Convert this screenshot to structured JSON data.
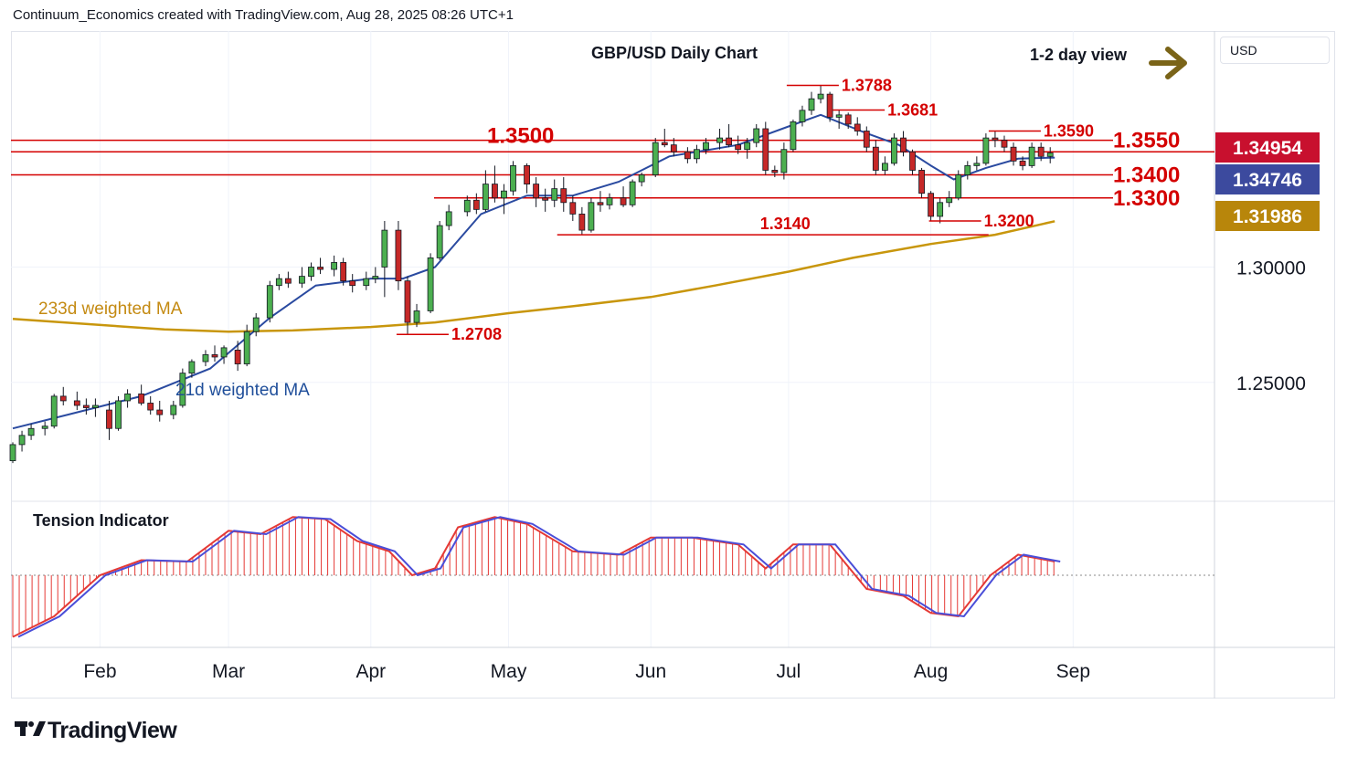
{
  "header_text": "Continuum_Economics created with TradingView.com, Aug 28, 2025 08:26 UTC+1",
  "currency": "USD",
  "logo_text": "TradingView",
  "chart_data": {
    "type": "candlestick",
    "title": "GBP/USD Daily Chart",
    "view_label": "1-2 day view",
    "view_direction": "sideways",
    "x_ticks": [
      {
        "label": "Feb",
        "date": "2025-02-01"
      },
      {
        "label": "Mar",
        "date": "2025-03-01"
      },
      {
        "label": "Apr",
        "date": "2025-04-01"
      },
      {
        "label": "May",
        "date": "2025-05-01"
      },
      {
        "label": "Jun",
        "date": "2025-06-01"
      },
      {
        "label": "Jul",
        "date": "2025-07-01"
      },
      {
        "label": "Aug",
        "date": "2025-08-01"
      },
      {
        "label": "Sep",
        "date": "2025-09-01"
      }
    ],
    "xlim": [
      "2025-01-13",
      "2025-09-30"
    ],
    "ylim": [
      1.2,
      1.4
    ],
    "y_tick_labels": [
      "1.25000",
      "1.30000"
    ],
    "y_ticks": [
      1.25,
      1.3
    ],
    "price_badges": [
      {
        "value": "1.34954",
        "color": "#c8102e"
      },
      {
        "value": "1.34746",
        "color": "#3c4a9e"
      },
      {
        "value": "1.31986",
        "color": "#b8860b"
      }
    ],
    "support_resistance": [
      {
        "label": "1.3550",
        "value": 1.355
      },
      {
        "label": "1.3400",
        "value": 1.34
      },
      {
        "label": "1.3300",
        "value": 1.33
      }
    ],
    "level_1_3500": {
      "label": "1.3500",
      "value": 1.35
    },
    "annotations": [
      {
        "label": "1.3788",
        "value": 1.3788,
        "date": "2025-07-01"
      },
      {
        "label": "1.3681",
        "value": 1.3681,
        "date": "2025-07-11"
      },
      {
        "label": "1.3590",
        "value": 1.359,
        "date": "2025-08-14"
      },
      {
        "label": "1.3200",
        "value": 1.32,
        "date": "2025-08-01"
      },
      {
        "label": "1.3140",
        "value": 1.314,
        "date": "2025-05-12"
      },
      {
        "label": "1.2708",
        "value": 1.2708,
        "date": "2025-04-07"
      }
    ],
    "ma_labels": {
      "ma233": "233d weighted MA",
      "ma21": "21d weighted MA"
    },
    "ma233_points": [
      [
        "2025-01-13",
        1.2775
      ],
      [
        "2025-02-15",
        1.273
      ],
      [
        "2025-03-01",
        1.272
      ],
      [
        "2025-03-15",
        1.2725
      ],
      [
        "2025-04-01",
        1.274
      ],
      [
        "2025-04-15",
        1.276
      ],
      [
        "2025-05-01",
        1.28
      ],
      [
        "2025-05-15",
        1.283
      ],
      [
        "2025-06-01",
        1.287
      ],
      [
        "2025-06-15",
        1.292
      ],
      [
        "2025-07-01",
        1.298
      ],
      [
        "2025-07-15",
        1.304
      ],
      [
        "2025-08-01",
        1.31
      ],
      [
        "2025-08-15",
        1.314
      ],
      [
        "2025-08-28",
        1.3199
      ]
    ],
    "ma21_points": [
      [
        "2025-01-13",
        1.23
      ],
      [
        "2025-01-25",
        1.236
      ],
      [
        "2025-02-10",
        1.244
      ],
      [
        "2025-02-25",
        1.256
      ],
      [
        "2025-03-10",
        1.278
      ],
      [
        "2025-03-20",
        1.292
      ],
      [
        "2025-04-01",
        1.295
      ],
      [
        "2025-04-08",
        1.295
      ],
      [
        "2025-04-15",
        1.3
      ],
      [
        "2025-04-25",
        1.323
      ],
      [
        "2025-05-05",
        1.331
      ],
      [
        "2025-05-15",
        1.331
      ],
      [
        "2025-05-25",
        1.337
      ],
      [
        "2025-06-05",
        1.348
      ],
      [
        "2025-06-20",
        1.353
      ],
      [
        "2025-07-01",
        1.361
      ],
      [
        "2025-07-08",
        1.366
      ],
      [
        "2025-07-18",
        1.358
      ],
      [
        "2025-07-25",
        1.353
      ],
      [
        "2025-08-01",
        1.344
      ],
      [
        "2025-08-06",
        1.338
      ],
      [
        "2025-08-13",
        1.343
      ],
      [
        "2025-08-20",
        1.347
      ],
      [
        "2025-08-28",
        1.3475
      ]
    ],
    "candles": [
      [
        "2025-01-13",
        1.216,
        1.224,
        1.215,
        1.223
      ],
      [
        "2025-01-15",
        1.223,
        1.229,
        1.22,
        1.227
      ],
      [
        "2025-01-17",
        1.227,
        1.232,
        1.225,
        1.23
      ],
      [
        "2025-01-20",
        1.23,
        1.233,
        1.227,
        1.231
      ],
      [
        "2025-01-22",
        1.231,
        1.245,
        1.23,
        1.244
      ],
      [
        "2025-01-24",
        1.244,
        1.248,
        1.24,
        1.242
      ],
      [
        "2025-01-27",
        1.242,
        1.246,
        1.238,
        1.24
      ],
      [
        "2025-01-29",
        1.24,
        1.243,
        1.236,
        1.239
      ],
      [
        "2025-01-31",
        1.239,
        1.243,
        1.235,
        1.24
      ],
      [
        "2025-02-03",
        1.238,
        1.242,
        1.225,
        1.23
      ],
      [
        "2025-02-05",
        1.23,
        1.244,
        1.229,
        1.242
      ],
      [
        "2025-02-07",
        1.242,
        1.247,
        1.239,
        1.245
      ],
      [
        "2025-02-10",
        1.245,
        1.249,
        1.24,
        1.241
      ],
      [
        "2025-02-12",
        1.241,
        1.244,
        1.236,
        1.238
      ],
      [
        "2025-02-14",
        1.238,
        1.242,
        1.233,
        1.236
      ],
      [
        "2025-02-17",
        1.236,
        1.242,
        1.234,
        1.24
      ],
      [
        "2025-02-19",
        1.24,
        1.256,
        1.239,
        1.254
      ],
      [
        "2025-02-21",
        1.254,
        1.26,
        1.252,
        1.259
      ],
      [
        "2025-02-24",
        1.259,
        1.264,
        1.257,
        1.262
      ],
      [
        "2025-02-26",
        1.262,
        1.266,
        1.259,
        1.261
      ],
      [
        "2025-02-28",
        1.261,
        1.266,
        1.258,
        1.265
      ],
      [
        "2025-03-03",
        1.264,
        1.268,
        1.255,
        1.258
      ],
      [
        "2025-03-05",
        1.258,
        1.275,
        1.257,
        1.272
      ],
      [
        "2025-03-07",
        1.272,
        1.28,
        1.27,
        1.278
      ],
      [
        "2025-03-10",
        1.278,
        1.294,
        1.276,
        1.292
      ],
      [
        "2025-03-12",
        1.292,
        1.297,
        1.29,
        1.295
      ],
      [
        "2025-03-14",
        1.295,
        1.298,
        1.291,
        1.293
      ],
      [
        "2025-03-17",
        1.293,
        1.3,
        1.291,
        1.296
      ],
      [
        "2025-03-19",
        1.296,
        1.302,
        1.294,
        1.3
      ],
      [
        "2025-03-21",
        1.3,
        1.304,
        1.297,
        1.299
      ],
      [
        "2025-03-24",
        1.299,
        1.305,
        1.296,
        1.302
      ],
      [
        "2025-03-26",
        1.302,
        1.304,
        1.292,
        1.294
      ],
      [
        "2025-03-28",
        1.294,
        1.297,
        1.289,
        1.292
      ],
      [
        "2025-03-31",
        1.292,
        1.298,
        1.29,
        1.295
      ],
      [
        "2025-04-02",
        1.295,
        1.3,
        1.293,
        1.296
      ],
      [
        "2025-04-04",
        1.3,
        1.32,
        1.287,
        1.316
      ],
      [
        "2025-04-07",
        1.316,
        1.32,
        1.29,
        1.294
      ],
      [
        "2025-04-09",
        1.294,
        1.296,
        1.2708,
        1.276
      ],
      [
        "2025-04-11",
        1.276,
        1.284,
        1.274,
        1.281
      ],
      [
        "2025-04-14",
        1.281,
        1.306,
        1.28,
        1.304
      ],
      [
        "2025-04-16",
        1.304,
        1.32,
        1.303,
        1.318
      ],
      [
        "2025-04-18",
        1.318,
        1.327,
        1.316,
        1.324
      ],
      [
        "2025-04-22",
        1.324,
        1.331,
        1.322,
        1.329
      ],
      [
        "2025-04-24",
        1.329,
        1.332,
        1.323,
        1.325
      ],
      [
        "2025-04-26",
        1.325,
        1.342,
        1.324,
        1.336
      ],
      [
        "2025-04-28",
        1.336,
        1.344,
        1.328,
        1.33
      ],
      [
        "2025-04-30",
        1.33,
        1.336,
        1.323,
        1.333
      ],
      [
        "2025-05-02",
        1.333,
        1.346,
        1.331,
        1.344
      ],
      [
        "2025-05-05",
        1.344,
        1.345,
        1.332,
        1.336
      ],
      [
        "2025-05-07",
        1.336,
        1.339,
        1.326,
        1.33
      ],
      [
        "2025-05-09",
        1.33,
        1.334,
        1.324,
        1.329
      ],
      [
        "2025-05-11",
        1.329,
        1.338,
        1.326,
        1.334
      ],
      [
        "2025-05-13",
        1.334,
        1.339,
        1.324,
        1.328
      ],
      [
        "2025-05-15",
        1.328,
        1.331,
        1.32,
        1.323
      ],
      [
        "2025-05-17",
        1.323,
        1.326,
        1.314,
        1.316
      ],
      [
        "2025-05-19",
        1.316,
        1.33,
        1.315,
        1.328
      ],
      [
        "2025-05-21",
        1.328,
        1.333,
        1.324,
        1.327
      ],
      [
        "2025-05-23",
        1.327,
        1.332,
        1.325,
        1.33
      ],
      [
        "2025-05-26",
        1.33,
        1.335,
        1.326,
        1.327
      ],
      [
        "2025-05-28",
        1.327,
        1.338,
        1.326,
        1.337
      ],
      [
        "2025-05-30",
        1.337,
        1.341,
        1.335,
        1.34
      ],
      [
        "2025-06-02",
        1.34,
        1.356,
        1.339,
        1.354
      ],
      [
        "2025-06-04",
        1.354,
        1.36,
        1.352,
        1.353
      ],
      [
        "2025-06-06",
        1.353,
        1.356,
        1.348,
        1.35
      ],
      [
        "2025-06-09",
        1.35,
        1.352,
        1.345,
        1.347
      ],
      [
        "2025-06-11",
        1.347,
        1.353,
        1.345,
        1.351
      ],
      [
        "2025-06-13",
        1.351,
        1.356,
        1.349,
        1.354
      ],
      [
        "2025-06-16",
        1.354,
        1.36,
        1.351,
        1.356
      ],
      [
        "2025-06-18",
        1.356,
        1.362,
        1.352,
        1.353
      ],
      [
        "2025-06-20",
        1.353,
        1.357,
        1.349,
        1.351
      ],
      [
        "2025-06-22",
        1.351,
        1.356,
        1.347,
        1.354
      ],
      [
        "2025-06-24",
        1.354,
        1.362,
        1.352,
        1.36
      ],
      [
        "2025-06-26",
        1.36,
        1.363,
        1.34,
        1.342
      ],
      [
        "2025-06-28",
        1.342,
        1.344,
        1.339,
        1.341
      ],
      [
        "2025-06-30",
        1.341,
        1.354,
        1.338,
        1.351
      ],
      [
        "2025-07-02",
        1.351,
        1.364,
        1.35,
        1.363
      ],
      [
        "2025-07-04",
        1.363,
        1.37,
        1.361,
        1.368
      ],
      [
        "2025-07-06",
        1.368,
        1.376,
        1.366,
        1.373
      ],
      [
        "2025-07-08",
        1.373,
        1.3788,
        1.371,
        1.375
      ],
      [
        "2025-07-10",
        1.375,
        1.376,
        1.363,
        1.365
      ],
      [
        "2025-07-12",
        1.365,
        1.3681,
        1.36,
        1.366
      ],
      [
        "2025-07-14",
        1.366,
        1.367,
        1.36,
        1.362
      ],
      [
        "2025-07-16",
        1.362,
        1.365,
        1.357,
        1.359
      ],
      [
        "2025-07-18",
        1.359,
        1.361,
        1.35,
        1.352
      ],
      [
        "2025-07-20",
        1.352,
        1.355,
        1.34,
        1.342
      ],
      [
        "2025-07-22",
        1.342,
        1.348,
        1.34,
        1.345
      ],
      [
        "2025-07-24",
        1.345,
        1.358,
        1.344,
        1.356
      ],
      [
        "2025-07-26",
        1.356,
        1.359,
        1.348,
        1.35
      ],
      [
        "2025-07-28",
        1.35,
        1.351,
        1.34,
        1.342
      ],
      [
        "2025-07-30",
        1.342,
        1.343,
        1.33,
        1.332
      ],
      [
        "2025-08-01",
        1.332,
        1.333,
        1.32,
        1.322
      ],
      [
        "2025-08-03",
        1.322,
        1.33,
        1.319,
        1.328
      ],
      [
        "2025-08-05",
        1.328,
        1.333,
        1.326,
        1.33
      ],
      [
        "2025-08-07",
        1.33,
        1.342,
        1.329,
        1.34
      ],
      [
        "2025-08-09",
        1.34,
        1.346,
        1.338,
        1.344
      ],
      [
        "2025-08-11",
        1.344,
        1.348,
        1.342,
        1.345
      ],
      [
        "2025-08-13",
        1.345,
        1.358,
        1.344,
        1.356
      ],
      [
        "2025-08-15",
        1.356,
        1.359,
        1.352,
        1.355
      ],
      [
        "2025-08-17",
        1.355,
        1.357,
        1.35,
        1.352
      ],
      [
        "2025-08-19",
        1.352,
        1.354,
        1.344,
        1.346
      ],
      [
        "2025-08-21",
        1.346,
        1.348,
        1.342,
        1.344
      ],
      [
        "2025-08-23",
        1.344,
        1.354,
        1.343,
        1.352
      ],
      [
        "2025-08-25",
        1.352,
        1.354,
        1.346,
        1.348
      ],
      [
        "2025-08-27",
        1.348,
        1.352,
        1.345,
        1.3495
      ]
    ],
    "tension_indicator": {
      "label": "Tension Indicator",
      "ylim": [
        -1.0,
        1.0
      ],
      "points": [
        [
          "2025-01-13",
          -0.9
        ],
        [
          "2025-01-22",
          -0.6
        ],
        [
          "2025-02-01",
          0.0
        ],
        [
          "2025-02-10",
          0.22
        ],
        [
          "2025-02-20",
          0.2
        ],
        [
          "2025-03-01",
          0.65
        ],
        [
          "2025-03-08",
          0.6
        ],
        [
          "2025-03-15",
          0.85
        ],
        [
          "2025-03-22",
          0.82
        ],
        [
          "2025-03-29",
          0.5
        ],
        [
          "2025-04-05",
          0.35
        ],
        [
          "2025-04-10",
          0.0
        ],
        [
          "2025-04-15",
          0.1
        ],
        [
          "2025-04-20",
          0.7
        ],
        [
          "2025-04-28",
          0.85
        ],
        [
          "2025-05-05",
          0.75
        ],
        [
          "2025-05-15",
          0.35
        ],
        [
          "2025-05-25",
          0.3
        ],
        [
          "2025-06-01",
          0.55
        ],
        [
          "2025-06-10",
          0.55
        ],
        [
          "2025-06-20",
          0.45
        ],
        [
          "2025-06-26",
          0.1
        ],
        [
          "2025-07-02",
          0.45
        ],
        [
          "2025-07-10",
          0.45
        ],
        [
          "2025-07-18",
          -0.2
        ],
        [
          "2025-07-26",
          -0.3
        ],
        [
          "2025-08-01",
          -0.55
        ],
        [
          "2025-08-07",
          -0.6
        ],
        [
          "2025-08-14",
          0.0
        ],
        [
          "2025-08-20",
          0.3
        ],
        [
          "2025-08-28",
          0.2
        ]
      ]
    }
  }
}
